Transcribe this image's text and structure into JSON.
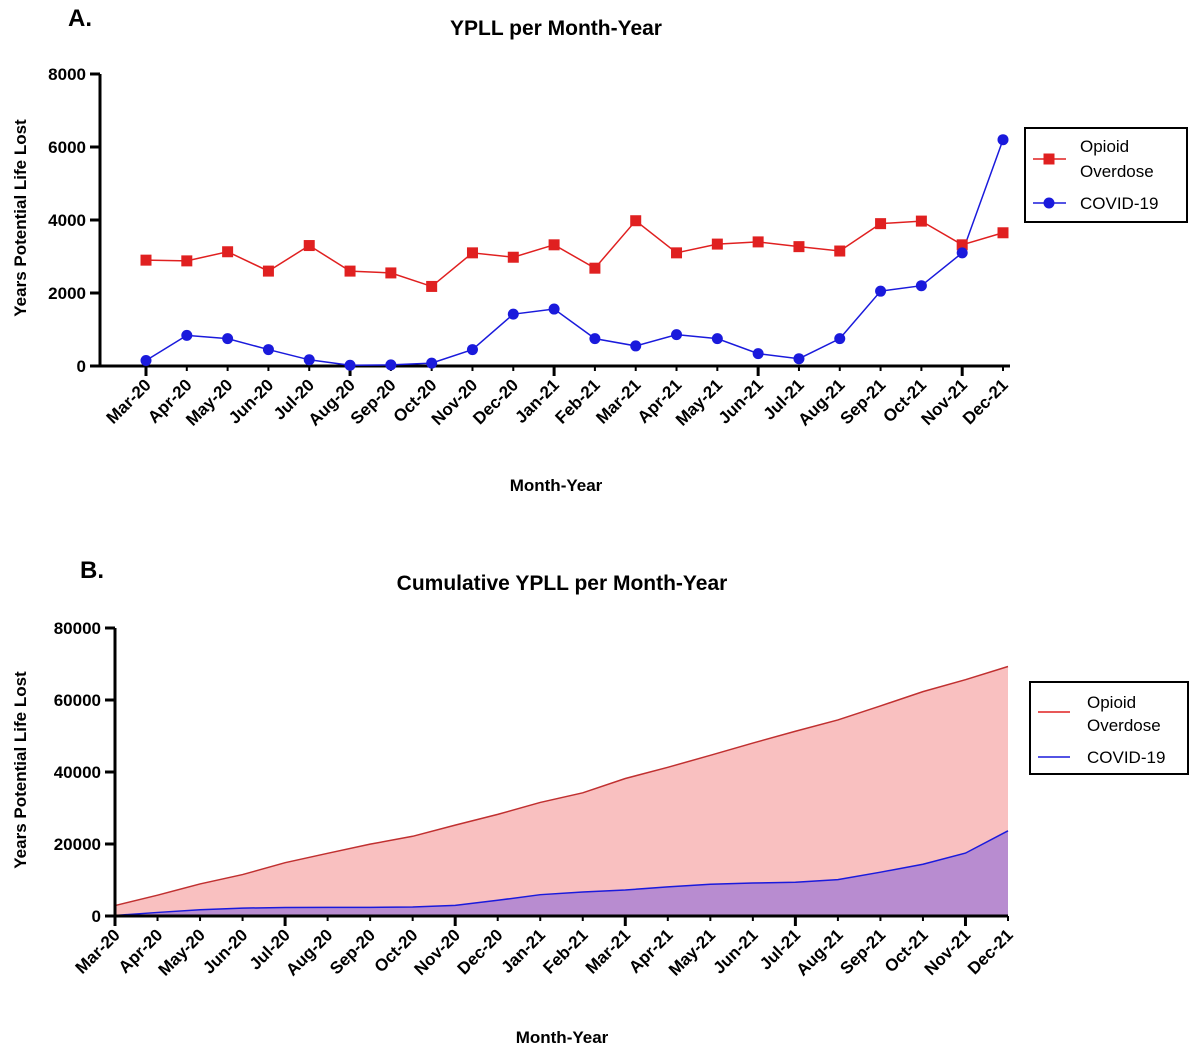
{
  "colors": {
    "opioid": "#e02020",
    "covid": "#1a1adc",
    "opioid_fill": "#f9c0c0",
    "covid_fill": "#b88cd0",
    "axis": "#000000"
  },
  "chart_data": [
    {
      "panel": "A.",
      "type": "line",
      "title": "YPLL per Month-Year",
      "xlabel": "Month-Year",
      "ylabel": "Years Potential  Life Lost",
      "ylim": [
        0,
        8000
      ],
      "yticks": [
        0,
        2000,
        4000,
        6000,
        8000
      ],
      "categories": [
        "Mar-20",
        "Apr-20",
        "May-20",
        "Jun-20",
        "Jul-20",
        "Aug-20",
        "Sep-20",
        "Oct-20",
        "Nov-20",
        "Dec-20",
        "Jan-21",
        "Feb-21",
        "Mar-21",
        "Apr-21",
        "May-21",
        "Jun-21",
        "Jul-21",
        "Aug-21",
        "Sep-21",
        "Oct-21",
        "Nov-21",
        "Dec-21"
      ],
      "legend_position": "right",
      "series": [
        {
          "name": "Opioid",
          "name_line2": "Overdose",
          "marker": "square",
          "values": [
            2900,
            2880,
            3130,
            2600,
            3300,
            2600,
            2550,
            2180,
            3100,
            2980,
            3320,
            2680,
            3980,
            3100,
            3340,
            3400,
            3270,
            3150,
            3900,
            3970,
            3320,
            3650
          ]
        },
        {
          "name": "COVID-19",
          "marker": "circle",
          "values": [
            150,
            840,
            750,
            450,
            170,
            20,
            30,
            80,
            450,
            1420,
            1560,
            750,
            550,
            860,
            750,
            340,
            200,
            750,
            2050,
            2200,
            3100,
            6200
          ]
        }
      ]
    },
    {
      "panel": "B.",
      "type": "area",
      "title": "Cumulative YPLL per Month-Year",
      "xlabel": "Month-Year",
      "ylabel": "Years Potential  Life Lost",
      "ylim": [
        0,
        80000
      ],
      "yticks": [
        0,
        20000,
        40000,
        60000,
        80000
      ],
      "categories": [
        "Mar-20",
        "Apr-20",
        "May-20",
        "Jun-20",
        "Jul-20",
        "Aug-20",
        "Sep-20",
        "Oct-20",
        "Nov-20",
        "Dec-20",
        "Jan-21",
        "Feb-21",
        "Mar-21",
        "Apr-21",
        "May-21",
        "Jun-21",
        "Jul-21",
        "Aug-21",
        "Sep-21",
        "Oct-21",
        "Nov-21",
        "Dec-21"
      ],
      "legend_position": "right",
      "series": [
        {
          "name": "Opioid",
          "name_line2": "Overdose",
          "values": [
            2900,
            5780,
            8910,
            11510,
            14810,
            17410,
            19960,
            22140,
            25240,
            28220,
            31540,
            34220,
            38200,
            41300,
            44640,
            48040,
            51310,
            54460,
            58360,
            62330,
            65650,
            69300
          ]
        },
        {
          "name": "COVID-19",
          "values": [
            150,
            990,
            1740,
            2190,
            2360,
            2380,
            2410,
            2490,
            2940,
            4360,
            5920,
            6670,
            7220,
            8080,
            8830,
            9170,
            9370,
            10120,
            12170,
            14370,
            17470,
            23670
          ]
        }
      ]
    }
  ]
}
